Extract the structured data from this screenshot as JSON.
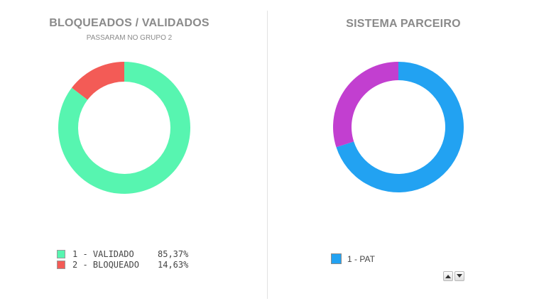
{
  "colors": {
    "validado": "#57f5b0",
    "bloqueado": "#f35b56",
    "pat": "#22a2f2",
    "other": "#c23fd0"
  },
  "left": {
    "title": "BLOQUEADOS / VALIDADOS",
    "subtitle": "PASSARAM NO GRUPO 2",
    "legend": [
      {
        "label": "1 - VALIDADO",
        "value": "85,37%"
      },
      {
        "label": "2 - BLOQUEADO",
        "value": "14,63%"
      }
    ]
  },
  "right": {
    "title": "SISTEMA PARCEIRO",
    "legend": [
      {
        "label": "1 - PAT"
      }
    ]
  },
  "pager": {
    "up_icon": "chevron-up-icon",
    "down_icon": "chevron-down-icon"
  },
  "chart_data": [
    {
      "type": "pie",
      "title": "BLOQUEADOS / VALIDADOS",
      "subtitle": "PASSARAM NO GRUPO 2",
      "categories": [
        "1 - VALIDADO",
        "2 - BLOQUEADO"
      ],
      "values": [
        85.37,
        14.63
      ],
      "colors": [
        "#57f5b0",
        "#f35b56"
      ],
      "donut": true,
      "legend": "bottom"
    },
    {
      "type": "pie",
      "title": "SISTEMA PARCEIRO",
      "categories": [
        "1 - PAT",
        ""
      ],
      "values": [
        70,
        30
      ],
      "colors": [
        "#22a2f2",
        "#c23fd0"
      ],
      "donut": true,
      "legend": "bottom"
    }
  ]
}
